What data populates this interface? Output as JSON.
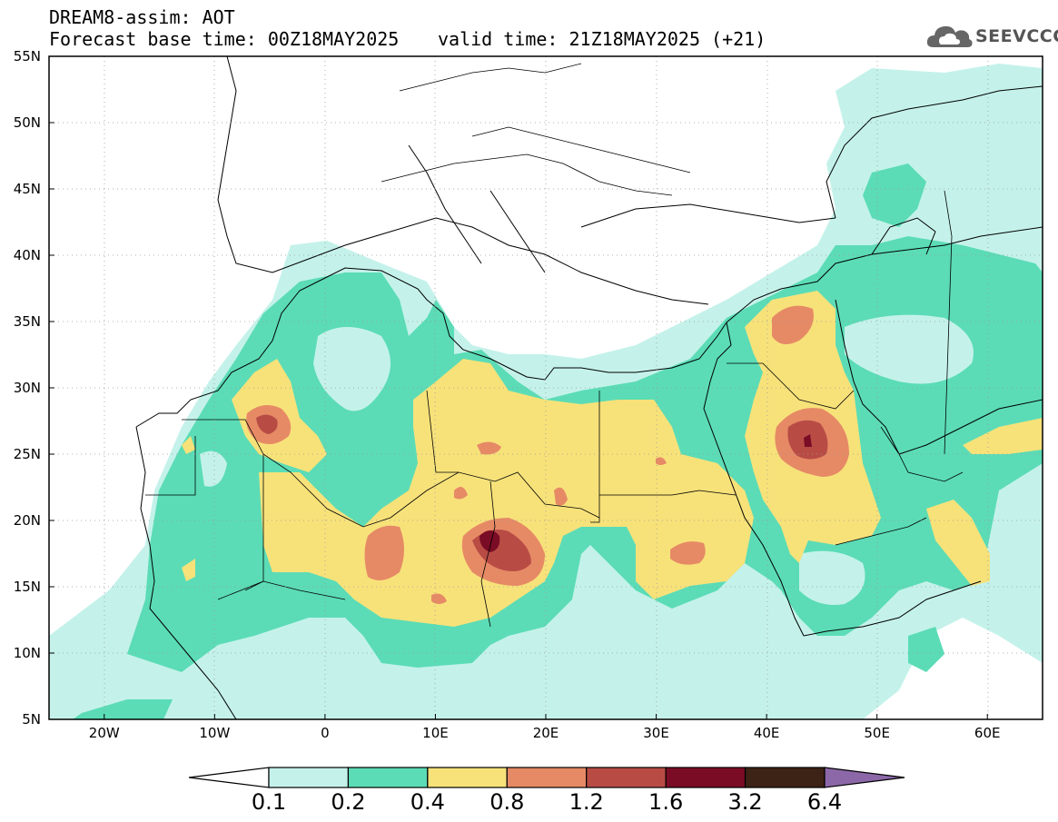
{
  "header": {
    "line1": "DREAM8-assim: AOT",
    "line2": "Forecast base time: 00Z18MAY2025",
    "line3": "valid time: 21Z18MAY2025 (+21)"
  },
  "logo": {
    "text": "SEEVCCC",
    "icon": "cloud-icon"
  },
  "map": {
    "variable": "AOT",
    "lon_range": [
      -25,
      65
    ],
    "lat_range": [
      5,
      55
    ],
    "lat_ticks": [
      {
        "lat": 55,
        "label": "55N"
      },
      {
        "lat": 50,
        "label": "50N"
      },
      {
        "lat": 45,
        "label": "45N"
      },
      {
        "lat": 40,
        "label": "40N"
      },
      {
        "lat": 35,
        "label": "35N"
      },
      {
        "lat": 30,
        "label": "30N"
      },
      {
        "lat": 25,
        "label": "25N"
      },
      {
        "lat": 20,
        "label": "20N"
      },
      {
        "lat": 15,
        "label": "15N"
      },
      {
        "lat": 10,
        "label": "10N"
      },
      {
        "lat": 5,
        "label": "5N"
      }
    ],
    "lon_ticks": [
      {
        "lon": -20,
        "label": "20W"
      },
      {
        "lon": -10,
        "label": "10W"
      },
      {
        "lon": 0,
        "label": "0"
      },
      {
        "lon": 10,
        "label": "10E"
      },
      {
        "lon": 20,
        "label": "20E"
      },
      {
        "lon": 30,
        "label": "30E"
      },
      {
        "lon": 40,
        "label": "40E"
      },
      {
        "lon": 50,
        "label": "50E"
      },
      {
        "lon": 60,
        "label": "60E"
      }
    ],
    "gridlines": "dotted"
  },
  "colorbar": {
    "labels": [
      "0.1",
      "0.2",
      "0.4",
      "0.8",
      "1.2",
      "1.6",
      "3.2",
      "6.4"
    ],
    "colors": [
      "#c4f2ea",
      "#5bdcb6",
      "#f7e27a",
      "#e68a66",
      "#b84c45",
      "#7b0c26",
      "#3d2315"
    ],
    "left_extension_color": "#ffffff",
    "right_extension_color": "#8c68a8"
  }
}
